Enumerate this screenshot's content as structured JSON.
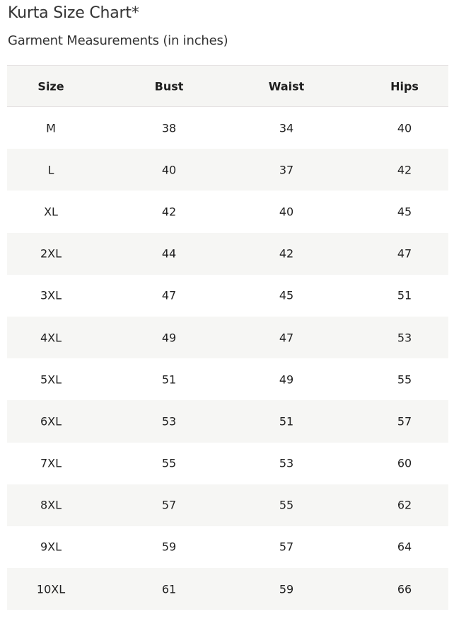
{
  "title": "Kurta Size Chart*",
  "subtitle": "Garment Measurements (in inches)",
  "table": {
    "headers": [
      "Size",
      "Bust",
      "Waist",
      "Hips"
    ],
    "rows": [
      [
        "M",
        "38",
        "34",
        "40"
      ],
      [
        "L",
        "40",
        "37",
        "42"
      ],
      [
        "XL",
        "42",
        "40",
        "45"
      ],
      [
        "2XL",
        "44",
        "42",
        "47"
      ],
      [
        "3XL",
        "47",
        "45",
        "51"
      ],
      [
        "4XL",
        "49",
        "47",
        "53"
      ],
      [
        "5XL",
        "51",
        "49",
        "55"
      ],
      [
        "6XL",
        "53",
        "51",
        "57"
      ],
      [
        "7XL",
        "55",
        "53",
        "60"
      ],
      [
        "8XL",
        "57",
        "55",
        "62"
      ],
      [
        "9XL",
        "59",
        "57",
        "64"
      ],
      [
        "10XL",
        "61",
        "59",
        "66"
      ]
    ]
  }
}
